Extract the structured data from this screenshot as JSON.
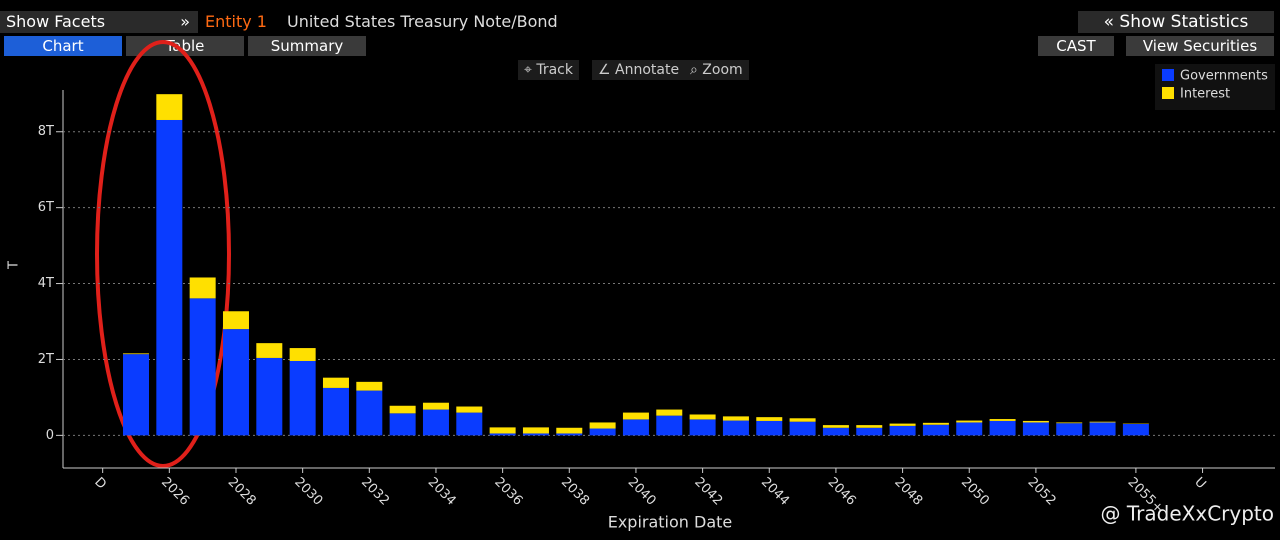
{
  "toolbar": {
    "facets": "Show Facets",
    "facets_arrow": "»",
    "entity": "Entity 1",
    "security": "United States Treasury Note/Bond",
    "statistics": "« Show Statistics",
    "tabs": [
      "Chart",
      "Table",
      "Summary"
    ],
    "cast": "CAST",
    "view": "View Securities",
    "tools": [
      "Track",
      "Annotate",
      "Zoom"
    ]
  },
  "watermark": "@ TradeXxCrypto",
  "chart_data": {
    "type": "stacked_bar",
    "x_label": "Expiration Date",
    "y_label": "T",
    "categories": [
      "D",
      null,
      "2026",
      null,
      "2028",
      null,
      "2030",
      null,
      "2032",
      null,
      "2034",
      null,
      "2036",
      null,
      "2038",
      null,
      "2040",
      null,
      "2042",
      null,
      "2044",
      null,
      "2046",
      null,
      "2048",
      null,
      "2050",
      null,
      "2052",
      null,
      null,
      "2055+",
      null,
      "U"
    ],
    "series": [
      {
        "name": "Governments",
        "color": "#0a3cff",
        "values": [
          null,
          2.14,
          8.31,
          3.61,
          2.8,
          2.04,
          1.96,
          1.25,
          1.18,
          0.58,
          0.68,
          0.6,
          0.05,
          0.05,
          0.05,
          0.18,
          0.42,
          0.52,
          0.42,
          0.39,
          0.38,
          0.36,
          0.2,
          0.2,
          0.25,
          0.28,
          0.34,
          0.38,
          0.34,
          0.32,
          0.34,
          0.3,
          null,
          null
        ]
      },
      {
        "name": "Interest",
        "color": "#ffe000",
        "values": [
          null,
          0.02,
          0.68,
          0.55,
          0.47,
          0.39,
          0.34,
          0.27,
          0.23,
          0.2,
          0.18,
          0.16,
          0.16,
          0.16,
          0.15,
          0.16,
          0.18,
          0.16,
          0.13,
          0.11,
          0.1,
          0.09,
          0.07,
          0.07,
          0.06,
          0.05,
          0.05,
          0.05,
          0.04,
          0.02,
          0.02,
          0.01,
          null,
          null
        ]
      }
    ],
    "ylim": [
      -0.86,
      9.1
    ],
    "yticks": [
      0,
      {
        "value": 2,
        "label": "2T"
      },
      {
        "value": 4,
        "label": "4T"
      },
      {
        "value": 6,
        "label": "6T"
      },
      {
        "value": 8,
        "label": "8T"
      }
    ],
    "grid": true,
    "legend": "top-right"
  }
}
